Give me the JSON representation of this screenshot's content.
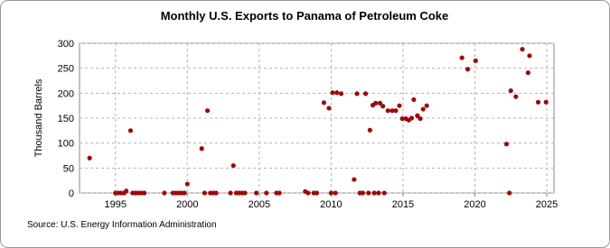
{
  "chart_data": {
    "type": "scatter",
    "title": "Monthly U.S. Exports to Panama of Petroleum Coke",
    "y_label": "Thousand Barrels",
    "source": "Source: U.S. Energy Information Administration",
    "color": "#9b0a0a",
    "grid": true,
    "xlim": [
      1992.5,
      2025.5
    ],
    "xticks": [
      1995,
      2000,
      2005,
      2010,
      2015,
      2020,
      2025
    ],
    "ylim": [
      0,
      300
    ],
    "yticks": [
      0,
      50,
      100,
      150,
      200,
      250,
      300
    ],
    "x": [
      1993.2,
      1995.0,
      1995.2,
      1995.4,
      1995.6,
      1995.75,
      1996.05,
      1996.2,
      1996.4,
      1996.6,
      1996.8,
      1997.0,
      1998.4,
      1999.0,
      1999.2,
      1999.4,
      1999.6,
      1999.8,
      2000.0,
      2001.0,
      2001.2,
      2001.4,
      2001.6,
      2001.8,
      2002.0,
      2003.0,
      2003.2,
      2003.4,
      2003.6,
      2003.8,
      2004.0,
      2004.8,
      2005.5,
      2006.2,
      2006.4,
      2008.2,
      2008.4,
      2008.8,
      2009.0,
      2009.5,
      2009.85,
      2010.0,
      2010.1,
      2010.3,
      2010.4,
      2010.7,
      2011.6,
      2011.8,
      2012.0,
      2012.2,
      2012.4,
      2012.6,
      2012.7,
      2012.9,
      2013.0,
      2013.1,
      2013.3,
      2013.4,
      2013.6,
      2013.7,
      2013.95,
      2014.25,
      2014.5,
      2014.75,
      2014.95,
      2015.2,
      2015.4,
      2015.6,
      2015.75,
      2016.0,
      2016.2,
      2016.4,
      2016.65,
      2019.1,
      2019.5,
      2020.05,
      2022.2,
      2022.4,
      2022.5,
      2022.85,
      2023.3,
      2023.7,
      2023.8,
      2024.4,
      2024.95
    ],
    "values": [
      70,
      0,
      0,
      0,
      0,
      4,
      125,
      0,
      0,
      0,
      0,
      0,
      0,
      0,
      0,
      0,
      0,
      0,
      18,
      89,
      0,
      165,
      0,
      0,
      0,
      0,
      55,
      0,
      0,
      0,
      0,
      0,
      0,
      0,
      0,
      3,
      0,
      0,
      0,
      181,
      170,
      0,
      201,
      0,
      201,
      199,
      27,
      199,
      0,
      0,
      199,
      0,
      126,
      176,
      0,
      180,
      0,
      180,
      174,
      0,
      165,
      165,
      165,
      175,
      149,
      149,
      146,
      150,
      187,
      155,
      149,
      168,
      175,
      271,
      248,
      265,
      98,
      0,
      205,
      193,
      288,
      241,
      275,
      182,
      182
    ]
  }
}
